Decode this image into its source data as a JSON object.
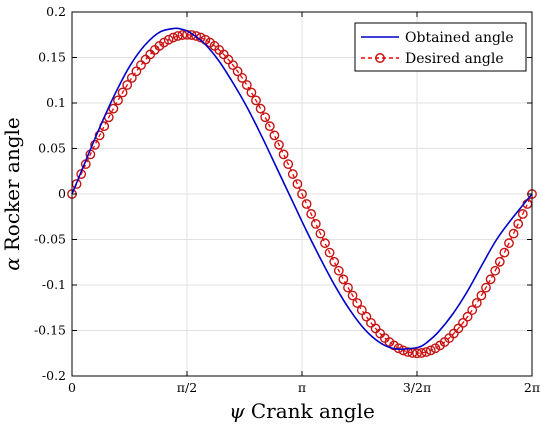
{
  "chart_data": {
    "type": "line",
    "xlabel_symbol": "ψ",
    "xlabel_text": "Crank angle",
    "ylabel_symbol": "α",
    "ylabel_text": "Rocker angle",
    "xlim": [
      0,
      6.283185
    ],
    "ylim": [
      -0.2,
      0.2
    ],
    "grid": true,
    "legend_position": "top-right",
    "x_ticks": [
      {
        "value": 0,
        "label": "0"
      },
      {
        "value": 1.570796,
        "label": "π/2"
      },
      {
        "value": 3.141593,
        "label": "π"
      },
      {
        "value": 4.712389,
        "label": "3/2π"
      },
      {
        "value": 6.283185,
        "label": "2π"
      }
    ],
    "y_ticks": [
      {
        "value": 0.2,
        "label": "0.2"
      },
      {
        "value": 0.15,
        "label": "0.15"
      },
      {
        "value": 0.1,
        "label": "0.1"
      },
      {
        "value": 0.05,
        "label": "0.05"
      },
      {
        "value": 0,
        "label": "0"
      },
      {
        "value": -0.05,
        "label": "-0.05"
      },
      {
        "value": -0.1,
        "label": "-0.1"
      },
      {
        "value": -0.15,
        "label": "-0.15"
      },
      {
        "value": -0.2,
        "label": "-0.2"
      }
    ],
    "series": [
      {
        "name": "Obtained angle",
        "color": "#0000cc",
        "style": "solid",
        "x": [
          0,
          0.2,
          0.4,
          0.6,
          0.8,
          1.0,
          1.2,
          1.4,
          1.5,
          1.6,
          1.8,
          2.0,
          2.2,
          2.4,
          2.6,
          2.8,
          3.0,
          3.2,
          3.4,
          3.6,
          3.8,
          4.0,
          4.2,
          4.4,
          4.6,
          4.75,
          4.85,
          5.0,
          5.2,
          5.4,
          5.6,
          5.8,
          6.0,
          6.283
        ],
        "y": [
          0,
          0.039,
          0.077,
          0.112,
          0.142,
          0.164,
          0.178,
          0.182,
          0.181,
          0.178,
          0.166,
          0.147,
          0.122,
          0.094,
          0.062,
          0.028,
          -0.006,
          -0.04,
          -0.072,
          -0.102,
          -0.128,
          -0.149,
          -0.163,
          -0.17,
          -0.17,
          -0.168,
          -0.163,
          -0.152,
          -0.132,
          -0.107,
          -0.078,
          -0.05,
          -0.028,
          0
        ]
      },
      {
        "name": "Desired angle",
        "color": "#ff0000",
        "marker_color": "#c41414",
        "style": "dashed-circle",
        "function": "sine",
        "amplitude": 0.175,
        "points": 100
      }
    ]
  }
}
